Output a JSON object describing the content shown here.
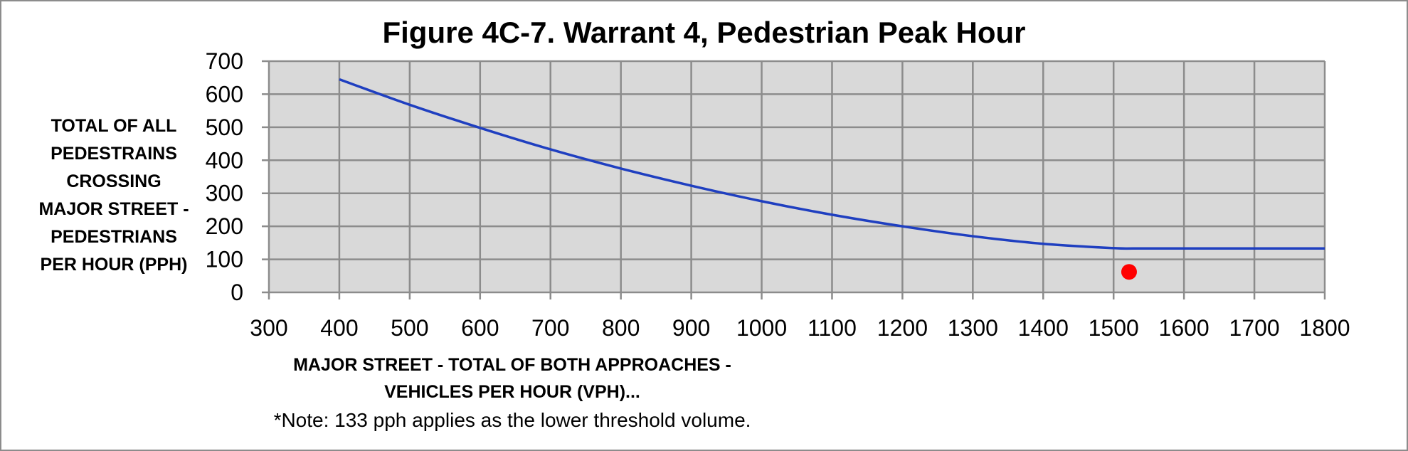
{
  "chart_data": {
    "type": "line",
    "title": "Figure 4C-7. Warrant 4, Pedestrian Peak Hour",
    "ylabel": "TOTAL OF ALL\nPEDESTRAINS\nCROSSING\nMAJOR STREET -\nPEDESTRIANS\nPER HOUR (PPH)",
    "xlabel": "MAJOR STREET - TOTAL OF BOTH APPROACHES -\nVEHICLES PER HOUR (VPH)...",
    "note": "*Note: 133 pph applies as the lower threshold volume.",
    "xlim": [
      300,
      1800
    ],
    "ylim": [
      0,
      700
    ],
    "x_ticks": [
      300,
      400,
      500,
      600,
      700,
      800,
      900,
      1000,
      1100,
      1200,
      1300,
      1400,
      1500,
      1600,
      1700,
      1800
    ],
    "y_ticks": [
      0,
      100,
      200,
      300,
      400,
      500,
      600,
      700
    ],
    "grid": true,
    "series": [
      {
        "color": "#1f3fc0",
        "x": [
          400,
          500,
          600,
          700,
          800,
          900,
          1000,
          1100,
          1200,
          1300,
          1400,
          1500,
          1530,
          1600,
          1700,
          1800
        ],
        "y": [
          645,
          568,
          498,
          433,
          375,
          323,
          276,
          235,
          200,
          170,
          147,
          134,
          133,
          133,
          133,
          133
        ]
      }
    ],
    "points": [
      {
        "x": 1522,
        "y": 62,
        "color": "#ff0000"
      }
    ],
    "plot_background": "#d9d9d9",
    "grid_color": "#8c8c8c"
  }
}
